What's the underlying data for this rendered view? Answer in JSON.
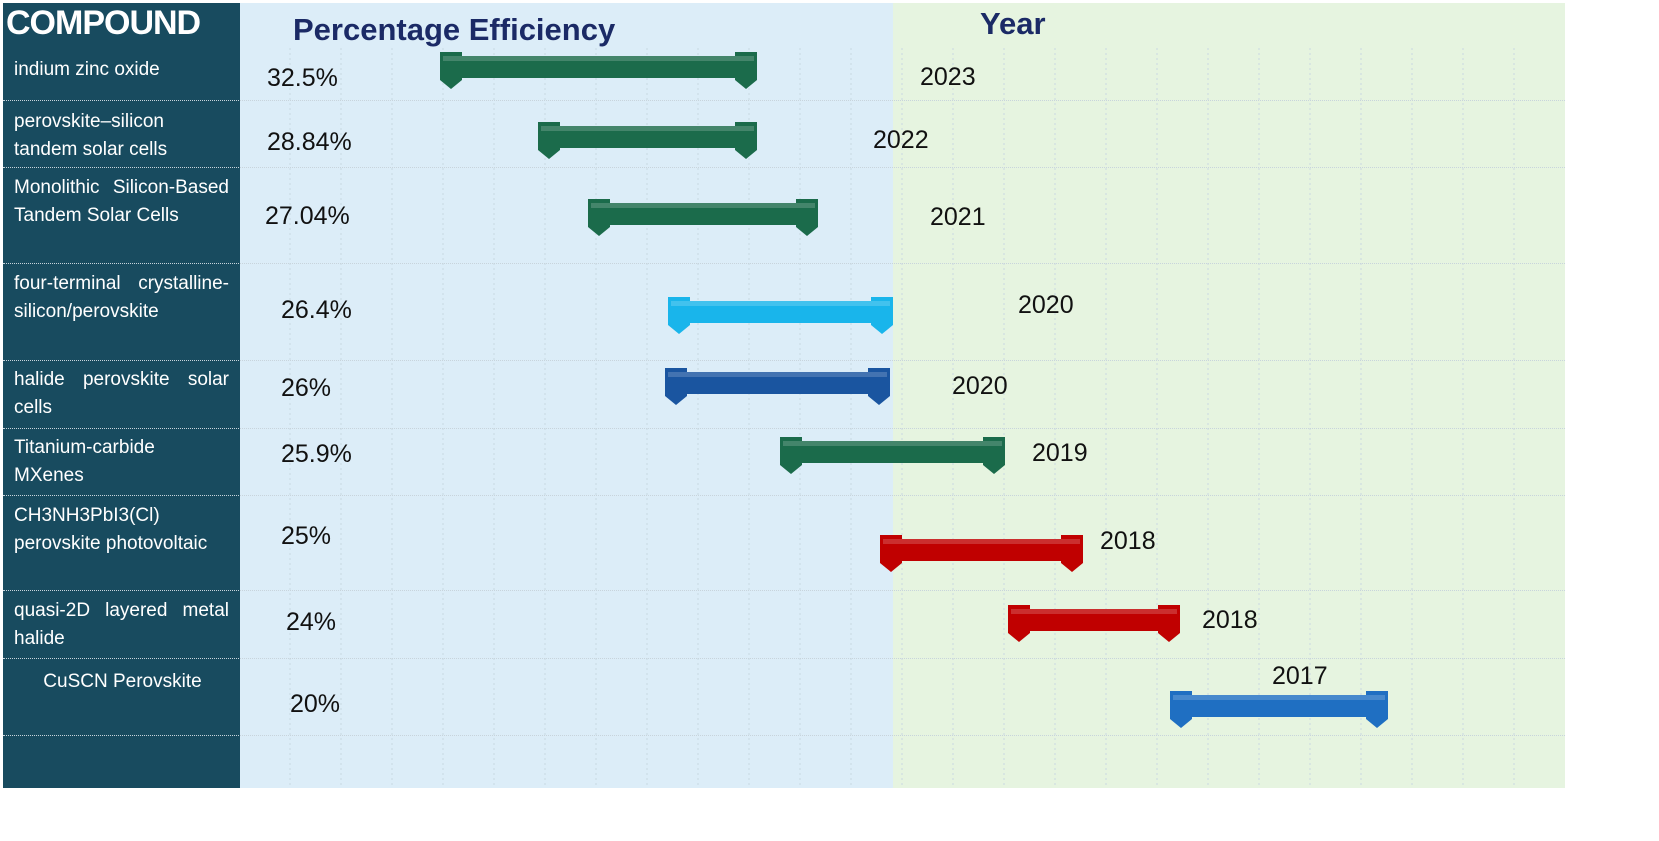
{
  "header": {
    "compound": "COMPOUND",
    "efficiency": "Percentage Efficiency",
    "year": "Year"
  },
  "rows": [
    {
      "compound": "indium zinc oxide",
      "efficiency": "32.5%",
      "year": "2023"
    },
    {
      "compound": "perovskite–silicon tandem solar cells",
      "efficiency": "28.84%",
      "year": "2022"
    },
    {
      "compound": "Monolithic Silicon-Based Tandem Solar Cells",
      "efficiency": "27.04%",
      "year": "2021"
    },
    {
      "compound": "four-terminal crystalline-silicon/perovskite",
      "efficiency": "26.4%",
      "year": "2020"
    },
    {
      "compound": "halide perovskite solar cells",
      "efficiency": "26%",
      "year": "2020"
    },
    {
      "compound": "Titanium-carbide MXenes",
      "efficiency": "25.9%",
      "year": "2019"
    },
    {
      "compound": "CH3NH3PbI3(Cl) perovskite photovoltaic",
      "efficiency": "25%",
      "year": "2018"
    },
    {
      "compound": "quasi-2D layered metal halide",
      "efficiency": "24%",
      "year": "2018"
    },
    {
      "compound": "CuSCN Perovskite",
      "efficiency": "20%",
      "year": "2017"
    }
  ]
}
